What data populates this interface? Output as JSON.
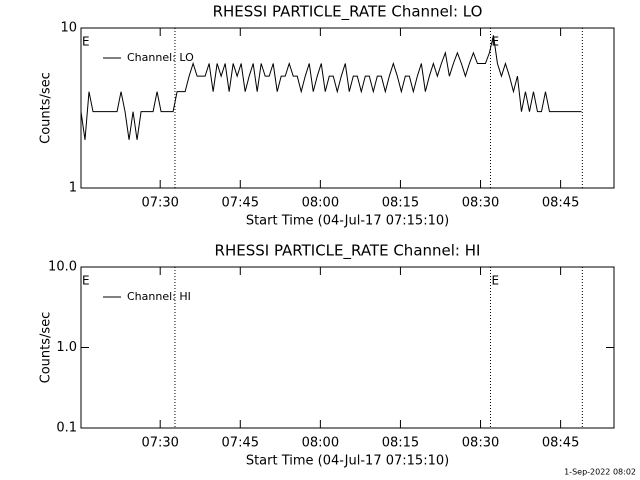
{
  "chart_data": [
    {
      "type": "line",
      "title": "RHESSI PARTICLE_RATE Channel: LO",
      "x_label": "Start Time (04-Jul-17 07:15:10)",
      "y_label": "Counts/sec",
      "log_y": true,
      "ylim": [
        1,
        10
      ],
      "yticks": [
        1,
        10
      ],
      "xlim": [
        "07:15:10",
        "08:55:00"
      ],
      "xticks": [
        "07:30",
        "07:45",
        "08:00",
        "08:15",
        "08:30",
        "08:45"
      ],
      "vlines": [
        "07:32:46",
        "08:31:52",
        "08:49:04"
      ],
      "annotations": [
        {
          "text": "E",
          "x": "07:15:10"
        },
        {
          "text": "E",
          "x": "08:31:52"
        }
      ],
      "legend": "upper left",
      "x": [
        "07:15:10",
        "07:15:55",
        "07:16:40",
        "07:17:25",
        "07:18:10",
        "07:18:55",
        "07:19:40",
        "07:20:25",
        "07:21:10",
        "07:21:55",
        "07:22:40",
        "07:23:25",
        "07:24:10",
        "07:24:55",
        "07:25:40",
        "07:26:25",
        "07:27:10",
        "07:27:55",
        "07:28:40",
        "07:29:25",
        "07:30:10",
        "07:30:55",
        "07:31:40",
        "07:32:25",
        "07:33:10",
        "07:33:55",
        "07:34:40",
        "07:35:25",
        "07:36:10",
        "07:36:55",
        "07:37:40",
        "07:38:25",
        "07:39:10",
        "07:39:55",
        "07:40:40",
        "07:41:25",
        "07:42:10",
        "07:42:55",
        "07:43:40",
        "07:44:25",
        "07:45:10",
        "07:45:55",
        "07:46:40",
        "07:47:25",
        "07:48:10",
        "07:48:55",
        "07:49:40",
        "07:50:25",
        "07:51:10",
        "07:51:55",
        "07:52:40",
        "07:53:25",
        "07:54:10",
        "07:54:55",
        "07:55:40",
        "07:56:25",
        "07:57:10",
        "07:57:55",
        "07:58:40",
        "07:59:25",
        "08:00:10",
        "08:00:55",
        "08:01:40",
        "08:02:25",
        "08:03:10",
        "08:03:55",
        "08:04:40",
        "08:05:25",
        "08:06:10",
        "08:06:55",
        "08:07:40",
        "08:08:25",
        "08:09:10",
        "08:09:55",
        "08:10:40",
        "08:11:25",
        "08:12:10",
        "08:12:55",
        "08:13:40",
        "08:14:25",
        "08:15:10",
        "08:15:55",
        "08:16:40",
        "08:17:25",
        "08:18:10",
        "08:18:55",
        "08:19:40",
        "08:20:25",
        "08:21:10",
        "08:21:55",
        "08:22:40",
        "08:23:25",
        "08:24:10",
        "08:24:55",
        "08:25:40",
        "08:26:25",
        "08:27:10",
        "08:27:55",
        "08:28:40",
        "08:29:25",
        "08:30:10",
        "08:30:55",
        "08:31:40",
        "08:32:25",
        "08:33:10",
        "08:33:55",
        "08:34:40",
        "08:35:25",
        "08:36:10",
        "08:36:55",
        "08:37:40",
        "08:38:25",
        "08:39:10",
        "08:39:55",
        "08:40:40",
        "08:41:25",
        "08:42:10",
        "08:42:55",
        "08:43:40",
        "08:44:25",
        "08:45:10",
        "08:45:55",
        "08:46:40",
        "08:47:25",
        "08:48:10",
        "08:48:55"
      ],
      "series": [
        {
          "name": "Channel: LO",
          "color": "#000000",
          "values": [
            3,
            2,
            4,
            3,
            3,
            3,
            3,
            3,
            3,
            3,
            4,
            3,
            2,
            3,
            2,
            3,
            3,
            3,
            3,
            4,
            3,
            3,
            3,
            3,
            4,
            4,
            4,
            5,
            6,
            5,
            5,
            5,
            6,
            4,
            6,
            5,
            6,
            4,
            6,
            5,
            6,
            4,
            5,
            6,
            4,
            6,
            5,
            5,
            6,
            4,
            5,
            5,
            6,
            5,
            5,
            4,
            5,
            6,
            4,
            5,
            6,
            4,
            5,
            5,
            4,
            5,
            6,
            4,
            5,
            5,
            4,
            5,
            5,
            4,
            5,
            5,
            4,
            5,
            6,
            5,
            4,
            5,
            5,
            4,
            5,
            6,
            4,
            5,
            6,
            5,
            6,
            7,
            5,
            6,
            7,
            6,
            5,
            6,
            7,
            6,
            6,
            6,
            7,
            9,
            6,
            5,
            6,
            5,
            4,
            5,
            3,
            4,
            3,
            4,
            3,
            3,
            4,
            3,
            3,
            3,
            3,
            3,
            3,
            3,
            3,
            3
          ]
        }
      ]
    },
    {
      "type": "line",
      "title": "RHESSI PARTICLE_RATE Channel: HI",
      "x_label": "Start Time (04-Jul-17 07:15:10)",
      "y_label": "Counts/sec",
      "log_y": true,
      "ylim": [
        0.1,
        10
      ],
      "yticks": [
        0.1,
        {
          "value": 1,
          "label": "1.0"
        },
        {
          "value": 10,
          "label": "10.0"
        }
      ],
      "xlim": [
        "07:15:10",
        "08:55:00"
      ],
      "xticks": [
        "07:30",
        "07:45",
        "08:00",
        "08:15",
        "08:30",
        "08:45"
      ],
      "vlines": [
        "07:32:46",
        "08:31:52",
        "08:49:04"
      ],
      "annotations": [
        {
          "text": "E",
          "x": "07:15:10"
        },
        {
          "text": "E",
          "x": "08:31:52"
        }
      ],
      "legend": "upper left",
      "x": [],
      "series": [
        {
          "name": "Channel: HI",
          "color": "#000000",
          "values": []
        }
      ]
    }
  ],
  "footer": "1-Sep-2022 08:02"
}
